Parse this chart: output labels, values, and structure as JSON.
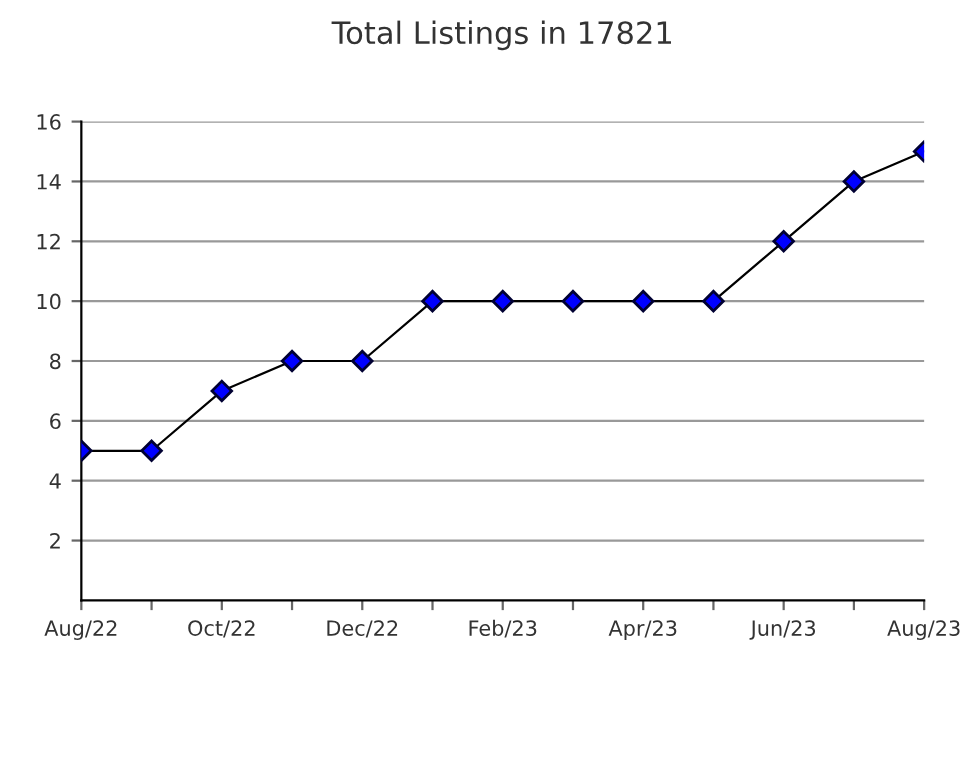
{
  "chart_data": {
    "type": "line",
    "title": "Total Listings in 17821",
    "categories": [
      "Aug/22",
      null,
      "Oct/22",
      null,
      "Dec/22",
      null,
      "Feb/23",
      null,
      "Apr/23",
      null,
      "Jun/23",
      null,
      "Aug/23"
    ],
    "series": [
      {
        "color": "#0000ff",
        "values": [
          5,
          5,
          7,
          8,
          8,
          10,
          10,
          10,
          10,
          10,
          12,
          14,
          15
        ]
      }
    ],
    "ylim": [
      0,
      16
    ],
    "yticks": [
      2,
      4,
      6,
      8,
      10,
      12,
      14,
      16
    ],
    "grid": "y",
    "marker": "diamond",
    "line_style": "solid",
    "legend": false
  }
}
